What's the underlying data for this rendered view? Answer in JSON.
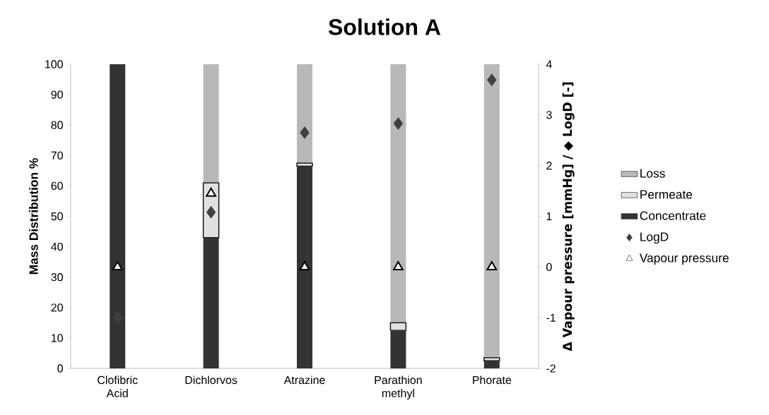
{
  "chart_data": {
    "type": "bar",
    "stacked": true,
    "title": "Solution A",
    "ylabel": "Mass Distribution %",
    "y2label": "Δ Vapour pressure [mmHg] / ◆ LogD [-]",
    "categories": [
      "Clofibric Acid",
      "Dichlorvos",
      "Atrazine",
      "Parathion methyl",
      "Phorate"
    ],
    "ylim": [
      0,
      100
    ],
    "yticks": [
      0,
      10,
      20,
      30,
      40,
      50,
      60,
      70,
      80,
      90,
      100
    ],
    "y2lim": [
      -2,
      4
    ],
    "y2ticks": [
      -2,
      -1,
      0,
      1,
      2,
      3,
      4
    ],
    "legend": "right",
    "grid": false,
    "series": [
      {
        "name": "Concentrate",
        "color": "#333333",
        "values": [
          100,
          43,
          66.5,
          12.5,
          2.5
        ]
      },
      {
        "name": "Permeate",
        "color": "#e0e0e0",
        "values": [
          0,
          18,
          1,
          2.5,
          1
        ]
      },
      {
        "name": "Loss",
        "color": "#b8b8b8",
        "values": [
          0,
          39,
          32.5,
          85,
          96.5
        ]
      },
      {
        "name": "LogD",
        "type": "scatter",
        "axis": "y2",
        "marker": "diamond",
        "color": "#404040",
        "x": [
          "Clofibric Acid",
          "Dichlorvos",
          "Atrazine",
          "Parathion methyl",
          "Phorate"
        ],
        "values": [
          -1.0,
          1.08,
          2.65,
          2.83,
          3.69
        ]
      },
      {
        "name": "Vapour pressure",
        "type": "scatter",
        "axis": "y2",
        "marker": "triangle",
        "color": "#ffffff",
        "x": [
          "Clofibric Acid",
          "Dichlorvos",
          "Atrazine",
          "Parathion methyl",
          "Phorate"
        ],
        "values": [
          0,
          1.45,
          0,
          0,
          0
        ]
      }
    ]
  }
}
